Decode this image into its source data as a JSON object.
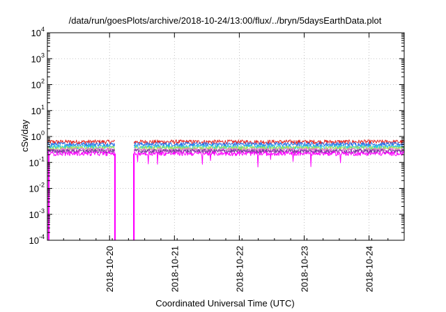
{
  "chart_data": {
    "type": "line",
    "title": "/data/run/goesPlots/archive/2018-10-24/13:00/flux/../bryn/5daysEarthData.plot",
    "xlabel": "Coordinated Universal Time (UTC)",
    "ylabel": "cSv/day",
    "yscale": "log",
    "ylim": [
      0.0001,
      10000
    ],
    "xlim": [
      "2018-10-19 01:00",
      "2018-10-24 13:00"
    ],
    "y_ticks": [
      {
        "value": 0.0001,
        "base": "10",
        "exp": "-4"
      },
      {
        "value": 0.001,
        "base": "10",
        "exp": "-3"
      },
      {
        "value": 0.01,
        "base": "10",
        "exp": "-2"
      },
      {
        "value": 0.1,
        "base": "10",
        "exp": "-1"
      },
      {
        "value": 1,
        "base": "10",
        "exp": "0"
      },
      {
        "value": 10,
        "base": "10",
        "exp": "1"
      },
      {
        "value": 100,
        "base": "10",
        "exp": "2"
      },
      {
        "value": 1000,
        "base": "10",
        "exp": "3"
      },
      {
        "value": 10000,
        "base": "10",
        "exp": "4"
      }
    ],
    "x_ticks": [
      {
        "value": "2018-10-20",
        "label": "2018-10-20"
      },
      {
        "value": "2018-10-21",
        "label": "2018-10-21"
      },
      {
        "value": "2018-10-22",
        "label": "2018-10-22"
      },
      {
        "value": "2018-10-23",
        "label": "2018-10-23"
      },
      {
        "value": "2018-10-24",
        "label": "2018-10-24"
      }
    ],
    "grid": true,
    "legend": "none",
    "data_gaps": [
      {
        "start": "2018-10-20 02:00",
        "end": "2018-10-20 09:00"
      }
    ],
    "series": [
      {
        "color": "#e32a2a",
        "level": 0.62
      },
      {
        "color": "#2f6fe8",
        "level": 0.5
      },
      {
        "color": "#23c6d8",
        "level": 0.4
      },
      {
        "color": "#a8e05a",
        "level": 0.35
      },
      {
        "color": "#e86ad8",
        "level": 0.3
      },
      {
        "color": "#7a3aa0",
        "level": 0.27
      },
      {
        "color": "#ff00ff",
        "level": 0.22
      }
    ],
    "dropouts": [
      {
        "time": "2018-10-19 01:30",
        "value": 0.0001
      },
      {
        "time": "2018-10-20 02:00",
        "value": 0.0001
      },
      {
        "time": "2018-10-20 09:00",
        "value": 0.0001
      }
    ]
  }
}
